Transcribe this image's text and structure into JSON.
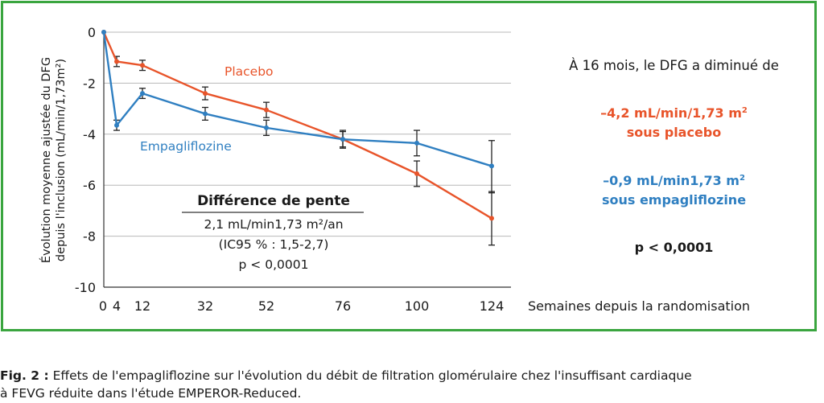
{
  "chart_data": {
    "type": "line",
    "x": [
      0,
      4,
      12,
      32,
      52,
      76,
      100,
      124
    ],
    "xticks": [
      "0",
      "4",
      "12",
      "32",
      "52",
      "76",
      "100",
      "124"
    ],
    "xlabel": "Semaines depuis la randomisation",
    "ylabel_line1": "Évolution moyenne ajustée du DFG",
    "ylabel_line2": "depuis l'inclusion (mL/min/1,73m²)",
    "ylim": [
      -10,
      0
    ],
    "yticks": [
      "0",
      "-2",
      "-4",
      "-6",
      "-8",
      "-10"
    ],
    "grid": true,
    "series": [
      {
        "name": "Placebo",
        "color": "#e8542a",
        "values": [
          0,
          -1.15,
          -1.3,
          -2.4,
          -3.05,
          -4.2,
          -5.55,
          -7.3
        ],
        "err_low": [
          0,
          -1.35,
          -1.5,
          -2.65,
          -3.35,
          -4.55,
          -6.05,
          -8.35
        ],
        "err_high": [
          0,
          -0.95,
          -1.1,
          -2.15,
          -2.75,
          -3.85,
          -5.05,
          -6.25
        ]
      },
      {
        "name": "Empagliflozine",
        "color": "#2f7fc1",
        "values": [
          0,
          -3.65,
          -2.4,
          -3.2,
          -3.75,
          -4.2,
          -4.35,
          -5.25
        ],
        "err_low": [
          0,
          -3.85,
          -2.6,
          -3.45,
          -4.05,
          -4.5,
          -4.85,
          -6.3
        ],
        "err_high": [
          0,
          -3.45,
          -2.2,
          -2.95,
          -3.45,
          -3.9,
          -3.85,
          -4.25
        ]
      }
    ],
    "annotation": {
      "title": "Différence de pente",
      "line1": "2,1 mL/min1,73 m²/an",
      "line2": "(IC95 % : 1,5-2,7)",
      "line3": "p < 0,0001"
    }
  },
  "side": {
    "intro": "À 16 mois, le DFG a diminué de",
    "placebo_value": "–4,2 mL/min/1,73 m",
    "placebo_sup": "2",
    "placebo_label": "sous placebo",
    "empa_value": "–0,9 mL/min1,73 m",
    "empa_sup": "2",
    "empa_label": "sous empagliflozine",
    "p_value": "p < 0,0001"
  },
  "caption": {
    "label": "Fig. 2 :",
    "text1": " Effets de l'empagliflozine sur l'évolution du débit de filtration glomérulaire chez l'insuffisant cardiaque",
    "text2": "à FEVG réduite dans l'étude EMPEROR-Reduced."
  }
}
